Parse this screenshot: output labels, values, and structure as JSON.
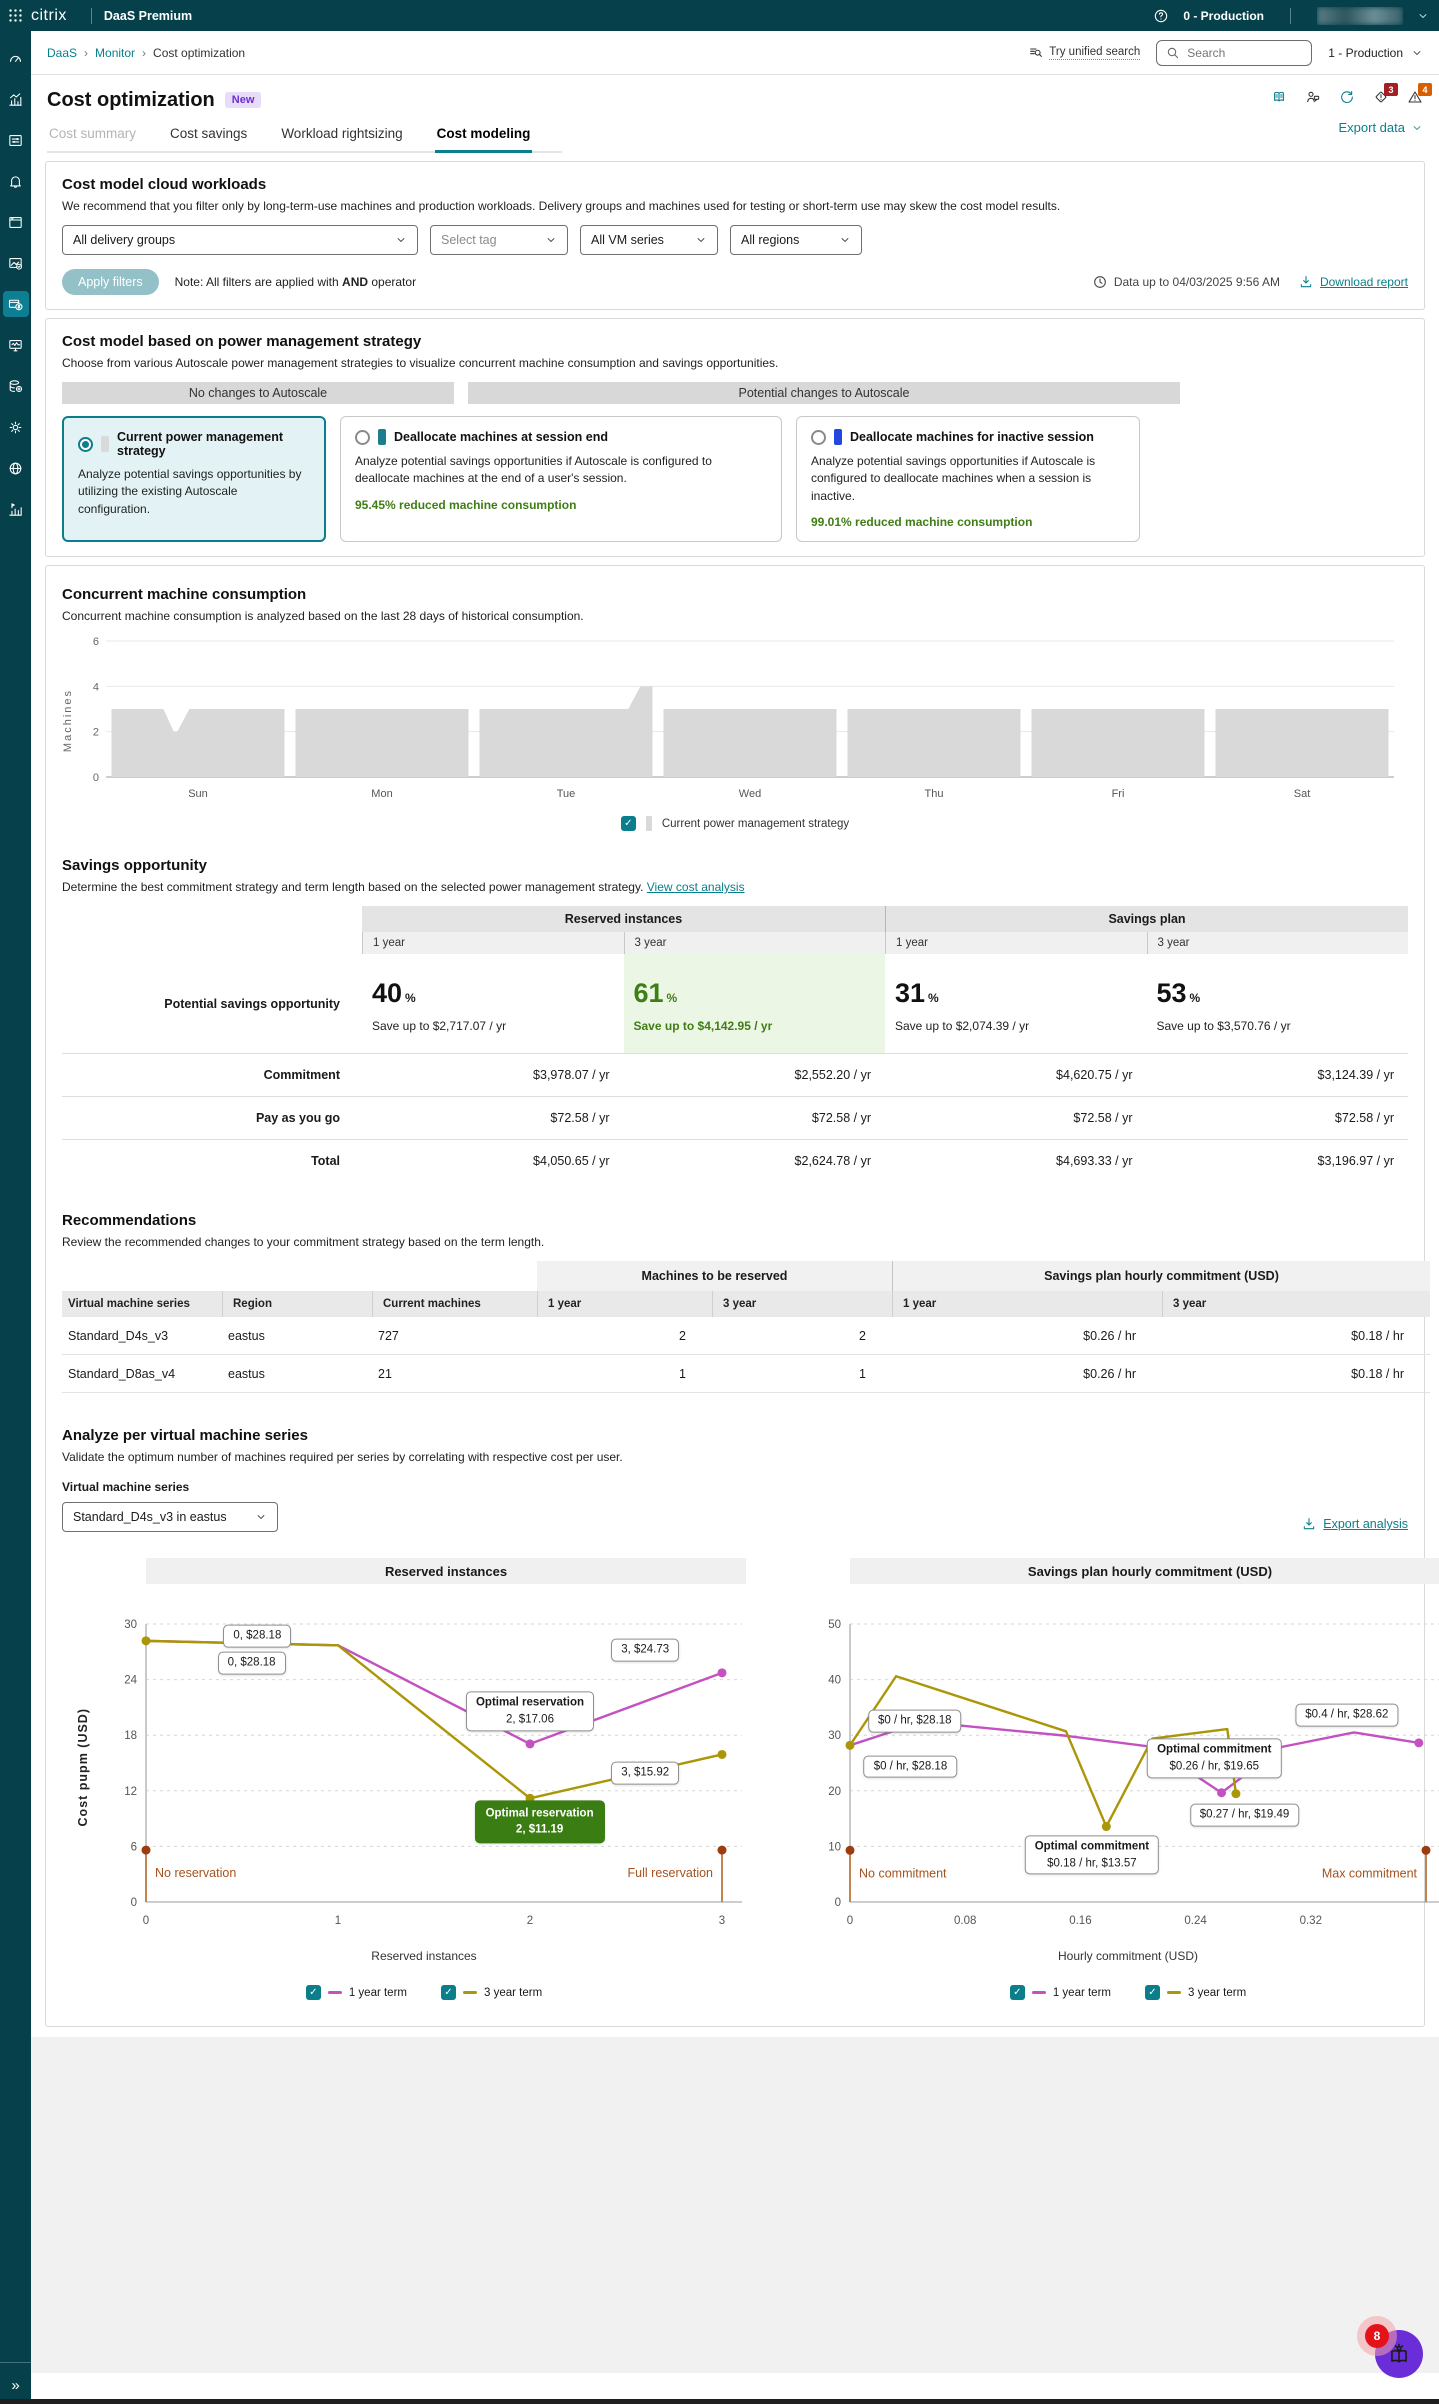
{
  "header": {
    "brand": "citrix",
    "product": "DaaS Premium",
    "tenant": "0 - Production"
  },
  "sidebar": {
    "icons": [
      "dashboard",
      "analytics",
      "controls",
      "notifications",
      "window",
      "image-check",
      "cost-optimization",
      "monitor",
      "data",
      "settings",
      "globe",
      "insights"
    ],
    "selected": "cost-optimization"
  },
  "breadcrumb": {
    "items": [
      "DaaS",
      "Monitor",
      "Cost optimization"
    ],
    "unified_search": "Try unified search",
    "search_placeholder": "Search",
    "org": "1 - Production"
  },
  "page": {
    "title": "Cost optimization",
    "badge": "New",
    "export_label": "Export data",
    "alert_badge_1": "3",
    "alert_badge_2": "4"
  },
  "tabs": [
    {
      "label": "Cost summary"
    },
    {
      "label": "Cost savings"
    },
    {
      "label": "Workload rightsizing"
    },
    {
      "label": "Cost modeling"
    }
  ],
  "filters": {
    "heading": "Cost model cloud workloads",
    "description": "We recommend that you filter only by long-term-use machines and production workloads. Delivery groups and machines used for testing or short-term use may skew the cost model results.",
    "dropdowns": [
      {
        "label": "All delivery groups"
      },
      {
        "label": "Select tag"
      },
      {
        "label": "All VM series"
      },
      {
        "label": "All regions"
      }
    ],
    "apply_button": "Apply filters",
    "note_prefix": "Note: All filters are applied with ",
    "note_bold": "AND",
    "note_suffix": " operator",
    "data_up_to": "Data up to 04/03/2025 9:56 AM",
    "download": "Download report"
  },
  "strategy": {
    "heading": "Cost model based on power management strategy",
    "description": "Choose from various Autoscale power management strategies to visualize concurrent machine consumption and savings opportunities.",
    "group_headers": [
      "No changes to Autoscale",
      "Potential changes to Autoscale"
    ],
    "cards": [
      {
        "title": "Current power management strategy",
        "description": "Analyze potential savings opportunities by utilizing the existing Autoscale configuration.",
        "swatch": "#d9d9d9",
        "savings": ""
      },
      {
        "title": "Deallocate machines at session end",
        "description": "Analyze potential savings opportunities if Autoscale is configured to deallocate machines at the end of a user's session.",
        "swatch": "#1b7e8e",
        "savings": "95.45% reduced machine consumption"
      },
      {
        "title": "Deallocate machines for inactive session",
        "description": "Analyze potential savings opportunities if Autoscale is configured to deallocate machines when a session is inactive.",
        "swatch": "#2346e0",
        "savings": "99.01% reduced machine consumption"
      }
    ]
  },
  "consumption": {
    "heading": "Concurrent machine consumption",
    "description": "Concurrent machine consumption is analyzed based on the last 28 days of historical consumption.",
    "legend": "Current power management strategy",
    "ylabel": "Machines"
  },
  "savings": {
    "heading": "Savings opportunity",
    "description": "Determine the best commitment strategy and term length based on the selected power management strategy.",
    "link": "View cost analysis",
    "row_label": "Potential savings opportunity",
    "pct_unit": "%",
    "groups": [
      "Reserved instances",
      "Savings plan"
    ],
    "terms": [
      "1 year",
      "3 year",
      "1 year",
      "3 year"
    ],
    "opportunity": [
      {
        "pct": "40",
        "save": "Save up to $2,717.07 / yr"
      },
      {
        "pct": "61",
        "save": "Save up to $4,142.95 / yr"
      },
      {
        "pct": "31",
        "save": "Save up to $2,074.39 / yr"
      },
      {
        "pct": "53",
        "save": "Save up to $3,570.76 / yr"
      }
    ],
    "rows": [
      {
        "label": "Commitment",
        "values": [
          "$3,978.07 / yr",
          "$2,552.20 / yr",
          "$4,620.75 / yr",
          "$3,124.39 / yr"
        ]
      },
      {
        "label": "Pay as you go",
        "values": [
          "$72.58 / yr",
          "$72.58 / yr",
          "$72.58 / yr",
          "$72.58 / yr"
        ]
      },
      {
        "label": "Total",
        "values": [
          "$4,050.65 / yr",
          "$2,624.78 / yr",
          "$4,693.33 / yr",
          "$3,196.97 / yr"
        ]
      }
    ]
  },
  "recommendations": {
    "heading": "Recommendations",
    "description": "Review the recommended changes to your commitment strategy based on the term length.",
    "group_headers": [
      "Machines to be reserved",
      "Savings plan hourly commitment (USD)"
    ],
    "columns": [
      "Virtual machine series",
      "Region",
      "Current machines",
      "1 year",
      "3 year",
      "1 year",
      "3 year"
    ],
    "rows": [
      [
        "Standard_D4s_v3",
        "eastus",
        "727",
        "2",
        "2",
        "$0.26 / hr",
        "$0.18 / hr"
      ],
      [
        "Standard_D8as_v4",
        "eastus",
        "21",
        "1",
        "1",
        "$0.26 / hr",
        "$0.18 / hr"
      ]
    ]
  },
  "analyze": {
    "heading": "Analyze per virtual machine series",
    "description": "Validate the optimum number of machines required per series by correlating with respective cost per user.",
    "label": "Virtual machine series",
    "selected": "Standard_D4s_v3 in eastus",
    "export": "Export analysis",
    "legend": [
      "1 year term",
      "3 year term"
    ]
  },
  "fab": {
    "badge": "8"
  },
  "colors": {
    "accent": "#0a7e8c",
    "magenta": "#c352c0",
    "olive": "#ab9607",
    "green": "#3f7d15",
    "brown": "#a5521d",
    "gray_fill": "#d9d9d9"
  },
  "chart_data": [
    {
      "type": "area",
      "title": "Concurrent machine consumption",
      "ylabel": "Machines",
      "ylim": [
        0,
        6
      ],
      "yticks": [
        0,
        2,
        4,
        6
      ],
      "categories": [
        "Sun",
        "Mon",
        "Tue",
        "Wed",
        "Thu",
        "Fri",
        "Sat"
      ],
      "series_name": "Current power management strategy",
      "base_value": 3,
      "day_profiles": {
        "Sun": [
          [
            0,
            3
          ],
          [
            0.3,
            3
          ],
          [
            0.36,
            2
          ],
          [
            0.38,
            2
          ],
          [
            0.45,
            3
          ],
          [
            1,
            3
          ]
        ],
        "Tue": [
          [
            0,
            3
          ],
          [
            0.86,
            3
          ],
          [
            0.93,
            4
          ],
          [
            1,
            4
          ]
        ],
        "default": [
          [
            0,
            3
          ],
          [
            1,
            3
          ]
        ]
      }
    },
    {
      "type": "line",
      "title": "Reserved instances",
      "xlabel": "Reserved instances",
      "ylabel": "Cost pupm (USD)",
      "xlim": [
        0,
        3
      ],
      "ylim": [
        0,
        30
      ],
      "yticks": [
        0,
        6,
        12,
        18,
        24,
        30
      ],
      "xticks": [
        0,
        1,
        2,
        3
      ],
      "series": [
        {
          "name": "1 year term",
          "color": "magenta",
          "points": [
            [
              0,
              28.18
            ],
            [
              1,
              27.7
            ],
            [
              2,
              17.06
            ],
            [
              3,
              24.73
            ]
          ]
        },
        {
          "name": "3 year term",
          "color": "olive",
          "points": [
            [
              0,
              28.18
            ],
            [
              1,
              27.7
            ],
            [
              2,
              11.19
            ],
            [
              3,
              15.92
            ]
          ]
        }
      ],
      "dots": [
        {
          "s": 1,
          "x": 0,
          "y": 28.18
        },
        {
          "s": 0,
          "x": 2,
          "y": 17.06
        },
        {
          "s": 0,
          "x": 3,
          "y": 24.73
        },
        {
          "s": 1,
          "x": 2,
          "y": 11.19
        },
        {
          "s": 1,
          "x": 3,
          "y": 15.92
        }
      ],
      "annotations": [
        {
          "x": 0.58,
          "y": 28.7,
          "lines": [
            "0, $28.18"
          ]
        },
        {
          "x": 0.55,
          "y": 25.8,
          "lines": [
            "0, $28.18"
          ]
        },
        {
          "x": 2.6,
          "y": 27.2,
          "lines": [
            "3, $24.73"
          ]
        },
        {
          "x": 2.0,
          "y": 20.6,
          "lines": [
            "Optimal reservation",
            "2, $17.06"
          ],
          "bold_first": true
        },
        {
          "x": 2.6,
          "y": 13.9,
          "lines": [
            "3, $15.92"
          ]
        },
        {
          "x": 2.05,
          "y": 8.7,
          "lines": [
            "Optimal reservation",
            "2, $11.19"
          ],
          "bold_first": true,
          "green": true
        }
      ],
      "markers": [
        {
          "x": 0,
          "top": 5.6,
          "label": "No reservation",
          "align": "start"
        },
        {
          "x": 3,
          "top": 5.6,
          "label": "Full reservation",
          "align": "end"
        }
      ]
    },
    {
      "type": "line",
      "title": "Savings plan hourly commitment (USD)",
      "xlabel": "Hourly commitment (USD)",
      "ylabel": "",
      "xlim": [
        0,
        0.4
      ],
      "ylim": [
        0,
        50
      ],
      "yticks": [
        0,
        10,
        20,
        30,
        40,
        50
      ],
      "xticks": [
        0,
        0.08,
        0.16,
        0.24,
        0.32
      ],
      "series": [
        {
          "name": "1 year term",
          "color": "magenta",
          "points": [
            [
              0,
              28.18
            ],
            [
              0.05,
              32.4
            ],
            [
              0.15,
              29.9
            ],
            [
              0.21,
              27.9
            ],
            [
              0.258,
              19.65
            ],
            [
              0.3,
              27.9
            ],
            [
              0.35,
              30.5
            ],
            [
              0.395,
              28.62
            ]
          ]
        },
        {
          "name": "3 year term",
          "color": "olive",
          "points": [
            [
              0,
              28.18
            ],
            [
              0.032,
              40.6
            ],
            [
              0.15,
              30.7
            ],
            [
              0.178,
              13.57
            ],
            [
              0.21,
              29.4
            ],
            [
              0.262,
              31.1
            ],
            [
              0.268,
              19.49
            ]
          ]
        }
      ],
      "dots": [
        {
          "s": 1,
          "x": 0,
          "y": 28.18
        },
        {
          "s": 1,
          "x": 0.178,
          "y": 13.57
        },
        {
          "s": 0,
          "x": 0.258,
          "y": 19.65
        },
        {
          "s": 1,
          "x": 0.268,
          "y": 19.49
        },
        {
          "s": 0,
          "x": 0.395,
          "y": 28.62
        }
      ],
      "annotations": [
        {
          "x": 0.045,
          "y": 32.6,
          "lines": [
            "$0 / hr, $28.18"
          ]
        },
        {
          "x": 0.042,
          "y": 24.4,
          "lines": [
            "$0 / hr, $28.18"
          ]
        },
        {
          "x": 0.253,
          "y": 25.9,
          "lines": [
            "Optimal commitment",
            "$0.26 / hr, $19.65"
          ],
          "bold_first": true
        },
        {
          "x": 0.274,
          "y": 15.6,
          "lines": [
            "$0.27 / hr, $19.49"
          ]
        },
        {
          "x": 0.168,
          "y": 8.5,
          "lines": [
            "Optimal commitment",
            "$0.18 / hr, $13.57"
          ],
          "bold_first": true
        },
        {
          "x": 0.345,
          "y": 33.6,
          "lines": [
            "$0.4 / hr, $28.62"
          ]
        }
      ],
      "markers": [
        {
          "x": 0,
          "top": 9.3,
          "label": "No commitment",
          "align": "start"
        },
        {
          "x": 0.4,
          "top": 9.3,
          "label": "Max commitment",
          "align": "end"
        }
      ]
    }
  ]
}
